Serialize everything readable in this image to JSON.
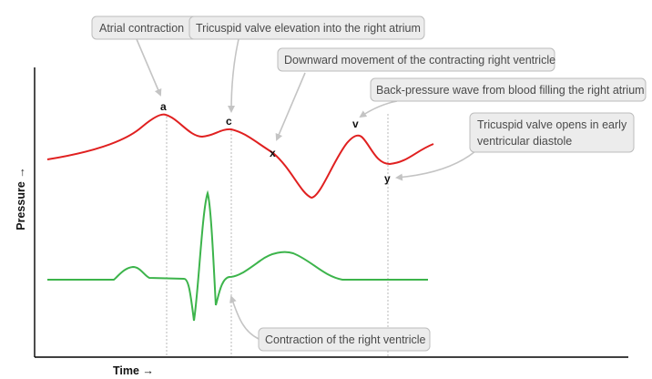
{
  "wave_labels": {
    "a": "a",
    "c": "c",
    "x": "x",
    "v": "v",
    "y": "y"
  },
  "callouts": {
    "atrial_contraction": "Atrial contraction",
    "tricuspid_elevation": "Tricuspid valve elevation into the right atrium",
    "downward_movement": "Downward movement of the contracting right ventricle",
    "back_pressure": "Back-pressure wave from blood filling the right atrium",
    "tricuspid_opens_line1": "Tricuspid valve opens in early",
    "tricuspid_opens_line2": "ventricular diastole",
    "ventricle_contraction": "Contraction of the right ventricle"
  },
  "axes": {
    "y_label": "Pressure →",
    "x_label": "Time →"
  },
  "colors": {
    "pressure_trace": "#e02020",
    "ecg_trace": "#3cb44b",
    "callout_fill": "#ececec",
    "callout_border": "#bdbdbd"
  }
}
